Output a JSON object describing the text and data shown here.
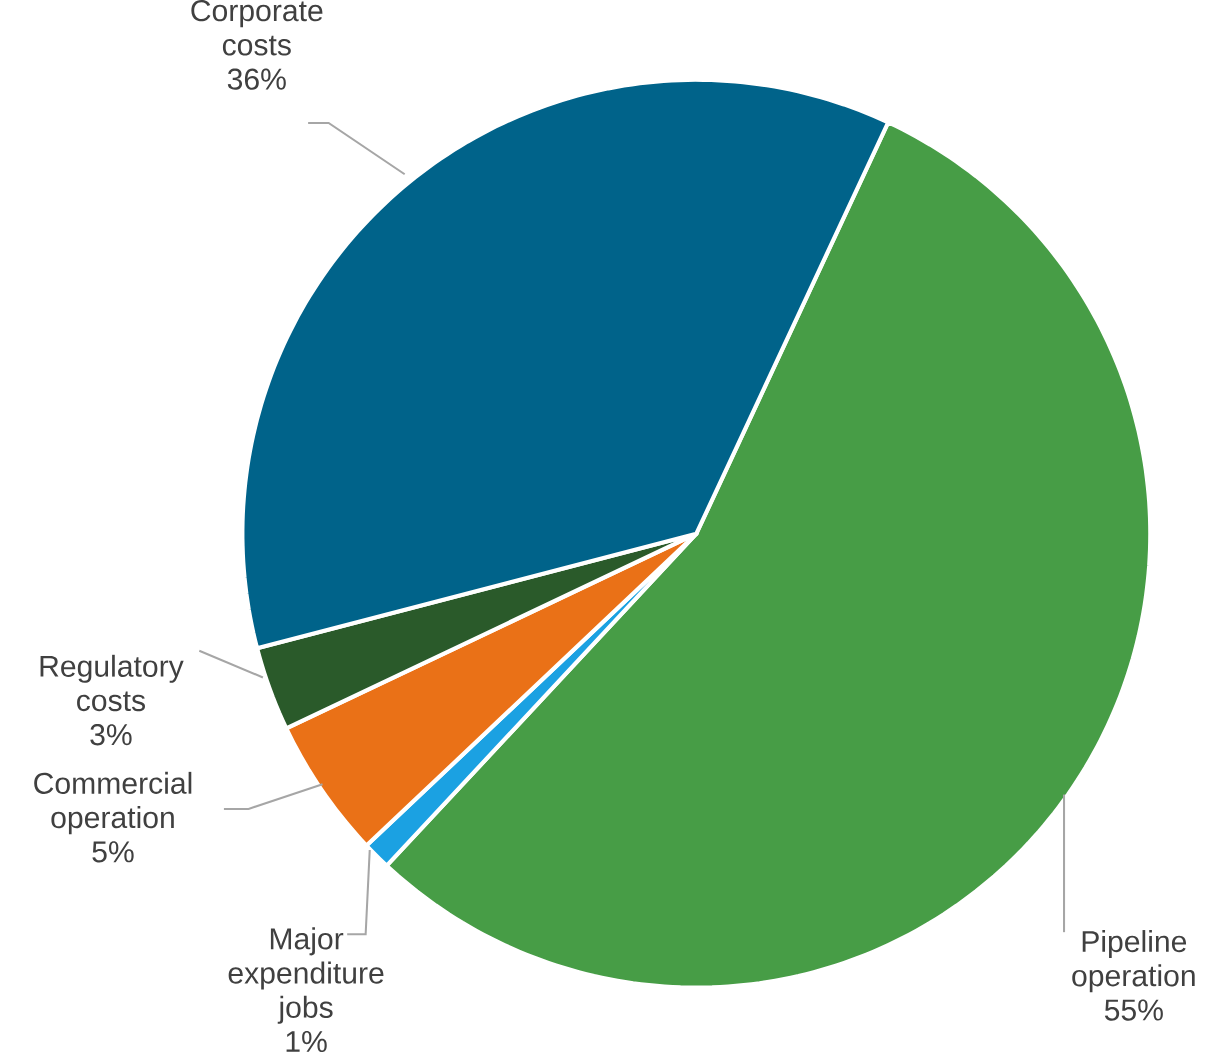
{
  "chart_data": {
    "type": "pie",
    "categories": [
      "Pipeline operation",
      "Major expenditure jobs",
      "Commercial operation",
      "Regulatory costs",
      "Corporate costs"
    ],
    "values": [
      55,
      1,
      5,
      3,
      36
    ],
    "value_labels": [
      "55%",
      "1%",
      "5%",
      "3%",
      "36%"
    ],
    "colors": [
      "#479d46",
      "#1ba1e2",
      "#ea7117",
      "#2a5a2a",
      "#00638a"
    ]
  }
}
